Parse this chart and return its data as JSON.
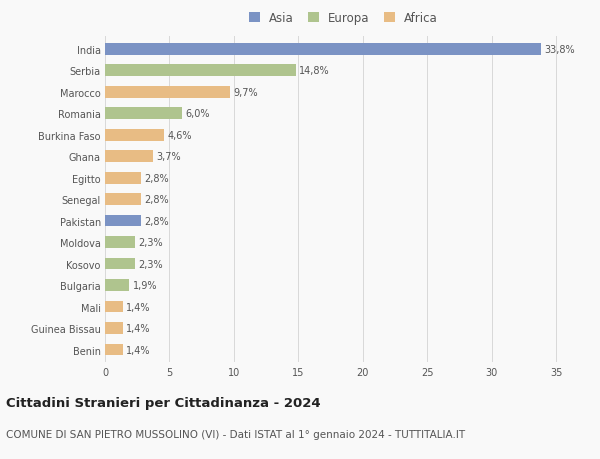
{
  "countries": [
    "India",
    "Serbia",
    "Marocco",
    "Romania",
    "Burkina Faso",
    "Ghana",
    "Egitto",
    "Senegal",
    "Pakistan",
    "Moldova",
    "Kosovo",
    "Bulgaria",
    "Mali",
    "Guinea Bissau",
    "Benin"
  ],
  "values": [
    33.8,
    14.8,
    9.7,
    6.0,
    4.6,
    3.7,
    2.8,
    2.8,
    2.8,
    2.3,
    2.3,
    1.9,
    1.4,
    1.4,
    1.4
  ],
  "labels": [
    "33,8%",
    "14,8%",
    "9,7%",
    "6,0%",
    "4,6%",
    "3,7%",
    "2,8%",
    "2,8%",
    "2,8%",
    "2,3%",
    "2,3%",
    "1,9%",
    "1,4%",
    "1,4%",
    "1,4%"
  ],
  "continents": [
    "Asia",
    "Europa",
    "Africa",
    "Europa",
    "Africa",
    "Africa",
    "Africa",
    "Africa",
    "Asia",
    "Europa",
    "Europa",
    "Europa",
    "Africa",
    "Africa",
    "Africa"
  ],
  "colors": {
    "Asia": "#7b93c4",
    "Europa": "#afc48e",
    "Africa": "#e8bc84"
  },
  "xlim": [
    0,
    37
  ],
  "xticks": [
    0,
    5,
    10,
    15,
    20,
    25,
    30,
    35
  ],
  "title": "Cittadini Stranieri per Cittadinanza - 2024",
  "subtitle": "COMUNE DI SAN PIETRO MUSSOLINO (VI) - Dati ISTAT al 1° gennaio 2024 - TUTTITALIA.IT",
  "bg_color": "#f9f9f9",
  "grid_color": "#d8d8d8",
  "bar_height": 0.55,
  "title_fontsize": 9.5,
  "subtitle_fontsize": 7.5,
  "label_fontsize": 7,
  "tick_fontsize": 7,
  "legend_fontsize": 8.5
}
